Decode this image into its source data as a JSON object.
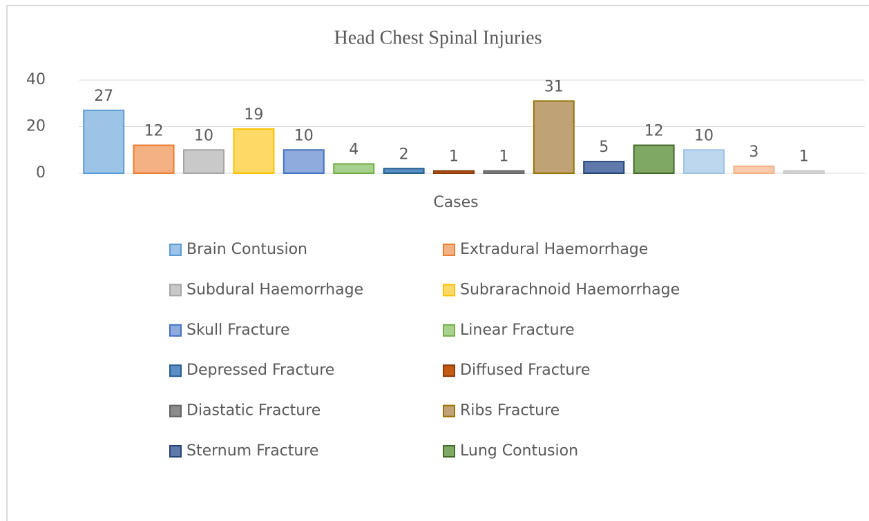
{
  "chart_data": {
    "type": "bar",
    "title": "Head Chest Spinal Injuries",
    "categories": [
      "Cases"
    ],
    "series": [
      {
        "name": "Brain Contusion",
        "color": "#9dc3e6",
        "edgecolor": "#5b9bd5",
        "values": [
          27
        ]
      },
      {
        "name": "Extradural Haemorrhage",
        "color": "#f4b183",
        "edgecolor": "#ed7d31",
        "values": [
          12
        ]
      },
      {
        "name": "Subdural Haemorrhage",
        "color": "#c9c9c9",
        "edgecolor": "#a5a5a5",
        "values": [
          10
        ]
      },
      {
        "name": "Subrarachnoid Haemorrhage",
        "color": "#ffd966",
        "edgecolor": "#ffc000",
        "values": [
          19
        ]
      },
      {
        "name": "Skull Fracture",
        "color": "#8faadc",
        "edgecolor": "#4472c4",
        "values": [
          10
        ]
      },
      {
        "name": "Linear Fracture",
        "color": "#a9d18e",
        "edgecolor": "#70ad47",
        "values": [
          4
        ]
      },
      {
        "name": "Depressed Fracture",
        "color": "#5b8ec4",
        "edgecolor": "#255e91",
        "values": [
          2
        ]
      },
      {
        "name": "Diffused Fracture",
        "color": "#c55a11",
        "edgecolor": "#843c0c",
        "values": [
          1
        ]
      },
      {
        "name": "Diastatic Fracture",
        "color": "#8c8c8c",
        "edgecolor": "#636363",
        "values": [
          1
        ]
      },
      {
        "name": "Ribs Fracture",
        "color": "#c0a277",
        "edgecolor": "#997300",
        "values": [
          31
        ]
      },
      {
        "name": "Sternum Fracture",
        "color": "#6079ac",
        "edgecolor": "#264478",
        "values": [
          5
        ]
      },
      {
        "name": "Lung Contusion",
        "color": "#7fa864",
        "edgecolor": "#43682b",
        "values": [
          12
        ]
      },
      {
        "color": "#bdd7ee",
        "edgecolor": "#9dc3e6",
        "values": [
          10
        ]
      },
      {
        "color": "#f8cbad",
        "edgecolor": "#f4b183",
        "values": [
          3
        ]
      },
      {
        "color": "#dbdbdb",
        "edgecolor": "#c9c9c9",
        "values": [
          1
        ]
      }
    ],
    "ylim": [
      0,
      40
    ],
    "yticks": [
      0,
      20,
      40
    ],
    "grid": true,
    "legend": "bottom"
  }
}
